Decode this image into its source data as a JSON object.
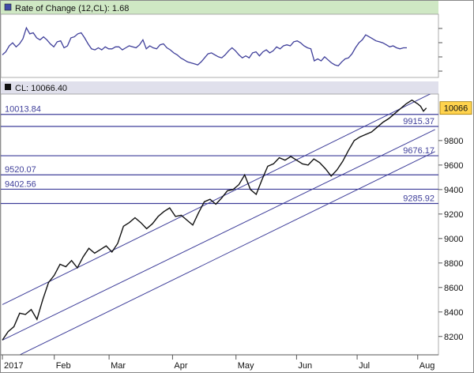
{
  "colors": {
    "header_bg": "#cfe8c4",
    "subheader_bg": "#e0e0ec",
    "line": "#111111",
    "level": "#3f3f9a",
    "price_label_bg": "#ffd34d",
    "axis": "#555555"
  },
  "chart_data": [
    {
      "type": "line",
      "title": "Rate of Change (12,CL): 1.68",
      "indicator_icon": "square-marker-icon",
      "series": [
        {
          "values": [
            4.2,
            4.8,
            6.0,
            6.6,
            5.8,
            6.4,
            7.4,
            9.6,
            8.4,
            8.6,
            7.6,
            7.2,
            7.8,
            7.2,
            6.4,
            5.8,
            6.8,
            7.0,
            5.6,
            6.0,
            7.6,
            7.8,
            8.4,
            8.6,
            7.6,
            6.4,
            5.4,
            5.2,
            5.6,
            5.2,
            5.8,
            5.4,
            5.4,
            5.8,
            5.8,
            5.2,
            5.6,
            6.0,
            5.8,
            5.6,
            6.2,
            7.2,
            5.4,
            6.0,
            5.6,
            5.4,
            6.2,
            6.4,
            5.6,
            5.2,
            4.6,
            4.2,
            3.6,
            3.2,
            2.8,
            2.6,
            2.4,
            2.2,
            2.8,
            3.6,
            4.4,
            4.6,
            4.2,
            3.8,
            3.6,
            4.2,
            5.0,
            5.6,
            5.0,
            4.2,
            3.6,
            4.0,
            3.6,
            4.6,
            4.8,
            4.0,
            4.8,
            5.2,
            4.6,
            5.0,
            5.8,
            5.4,
            6.0,
            6.2,
            6.0,
            6.8,
            7.0,
            6.6,
            6.0,
            5.6,
            5.4,
            3.0,
            3.4,
            3.0,
            3.8,
            3.2,
            2.6,
            2.2,
            2.0,
            2.8,
            3.4,
            3.6,
            4.4,
            5.6,
            6.6,
            7.2,
            8.2,
            7.8,
            7.4,
            7.0,
            6.8,
            6.6,
            6.2,
            5.8,
            6.0,
            5.6,
            5.4,
            5.6,
            5.6
          ]
        }
      ],
      "ylim": [
        0,
        12
      ],
      "yticks": []
    },
    {
      "type": "line",
      "title": "CL: 10066.40",
      "indicator_icon": "square-marker-icon",
      "x_ticks": [
        "2017",
        "Feb",
        "Mar",
        "Apr",
        "May",
        "Jun",
        "Jul",
        "Aug"
      ],
      "x_tick_positions": [
        0,
        18,
        37,
        59,
        81,
        102,
        123,
        144
      ],
      "n_points": 150,
      "ylim": [
        8050,
        10180
      ],
      "yticks": [
        8200,
        8400,
        8600,
        8800,
        9000,
        9200,
        9400,
        9600,
        9800
      ],
      "last_value_label": "10066",
      "last_value": 10066,
      "series": [
        {
          "x": [
            0,
            2,
            4,
            6,
            8,
            10,
            12,
            14,
            16,
            18,
            20,
            22,
            24,
            26,
            28,
            30,
            32,
            34,
            36,
            38,
            40,
            42,
            44,
            46,
            48,
            50,
            52,
            54,
            56,
            58,
            60,
            62,
            64,
            66,
            68,
            70,
            72,
            74,
            76,
            78,
            80,
            82,
            84,
            86,
            88,
            90,
            92,
            94,
            96,
            98,
            100,
            102,
            104,
            106,
            108,
            110,
            112,
            114,
            116,
            118,
            120,
            122,
            124,
            126,
            128,
            130,
            132,
            134,
            136,
            138,
            140,
            142,
            144,
            145,
            146,
            147
          ],
          "y": [
            8170,
            8240,
            8280,
            8390,
            8380,
            8420,
            8340,
            8500,
            8640,
            8700,
            8790,
            8770,
            8820,
            8760,
            8850,
            8920,
            8880,
            8910,
            8940,
            8890,
            8960,
            9100,
            9130,
            9170,
            9130,
            9080,
            9120,
            9180,
            9220,
            9250,
            9180,
            9190,
            9150,
            9110,
            9210,
            9300,
            9320,
            9280,
            9330,
            9390,
            9400,
            9440,
            9520,
            9400,
            9360,
            9480,
            9590,
            9610,
            9660,
            9640,
            9670,
            9640,
            9610,
            9600,
            9650,
            9620,
            9570,
            9510,
            9560,
            9630,
            9720,
            9800,
            9830,
            9850,
            9870,
            9910,
            9950,
            9980,
            10020,
            10060,
            10100,
            10130,
            10100,
            10080,
            10040,
            10066
          ]
        }
      ],
      "levels": [
        {
          "label": "10013.84",
          "value": 10013.84,
          "side": "left"
        },
        {
          "label": "9915.37",
          "value": 9915.37,
          "side": "right"
        },
        {
          "label": "9676.17",
          "value": 9676.17,
          "side": "right"
        },
        {
          "label": "9520.07",
          "value": 9520.07,
          "side": "left"
        },
        {
          "label": "9402.56",
          "value": 9402.56,
          "side": "left"
        },
        {
          "label": "9285.92",
          "value": 9285.92,
          "side": "right"
        }
      ],
      "channel_lines": [
        {
          "from": [
            0,
            8460
          ],
          "to": [
            150,
            10200
          ]
        },
        {
          "from": [
            0,
            8170
          ],
          "to": [
            150,
            9890
          ]
        },
        {
          "from": [
            0,
            7980
          ],
          "to": [
            150,
            9710
          ]
        }
      ]
    }
  ]
}
